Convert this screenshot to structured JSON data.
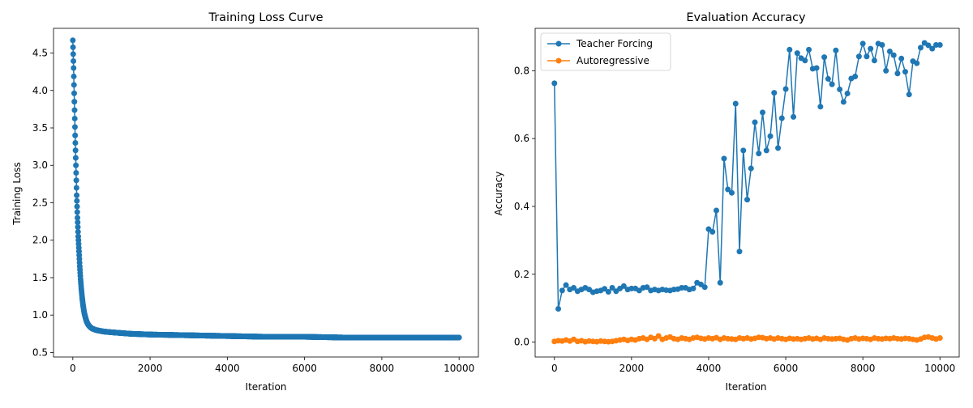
{
  "chart_data": [
    {
      "type": "line",
      "title": "Training Loss Curve",
      "xlabel": "Iteration",
      "ylabel": "Training Loss",
      "xlim": [
        -500,
        10500
      ],
      "ylim": [
        0.44,
        4.83
      ],
      "xticks": [
        0,
        2000,
        4000,
        6000,
        8000,
        10000
      ],
      "xtick_labels": [
        "0",
        "2000",
        "4000",
        "6000",
        "8000",
        "10000"
      ],
      "yticks": [
        0.5,
        1.0,
        1.5,
        2.0,
        2.5,
        3.0,
        3.5,
        4.0,
        4.5
      ],
      "ytick_labels": [
        "0.5",
        "1.0",
        "1.5",
        "2.0",
        "2.5",
        "3.0",
        "3.5",
        "4.0",
        "4.5"
      ],
      "grid": false,
      "series": [
        {
          "color": "#1f77b4",
          "marker": "circle",
          "x": [
            0,
            20,
            40,
            60,
            80,
            100,
            120,
            140,
            160,
            180,
            200,
            220,
            240,
            260,
            280,
            300,
            330,
            360,
            400,
            450,
            500,
            600,
            700,
            800,
            1000,
            1500,
            2000,
            3000,
            4000,
            5000,
            6000,
            7000,
            8000,
            9000,
            10000
          ],
          "values": [
            4.67,
            4.3,
            3.85,
            3.4,
            3.0,
            2.6,
            2.3,
            2.05,
            1.85,
            1.65,
            1.48,
            1.35,
            1.24,
            1.15,
            1.08,
            1.02,
            0.96,
            0.91,
            0.87,
            0.84,
            0.82,
            0.8,
            0.79,
            0.78,
            0.77,
            0.75,
            0.74,
            0.73,
            0.72,
            0.71,
            0.71,
            0.7,
            0.7,
            0.7,
            0.7
          ]
        }
      ]
    },
    {
      "type": "line",
      "title": "Evaluation Accuracy",
      "xlabel": "Iteration",
      "ylabel": "Accuracy",
      "xlim": [
        -500,
        10500
      ],
      "ylim": [
        -0.044,
        0.925
      ],
      "xticks": [
        0,
        2000,
        4000,
        6000,
        8000,
        10000
      ],
      "xtick_labels": [
        "0",
        "2000",
        "4000",
        "6000",
        "8000",
        "10000"
      ],
      "yticks": [
        0.0,
        0.2,
        0.4,
        0.6,
        0.8
      ],
      "ytick_labels": [
        "0.0",
        "0.2",
        "0.4",
        "0.6",
        "0.8"
      ],
      "grid": false,
      "legend": "top-left",
      "series": [
        {
          "name": "Teacher Forcing",
          "color": "#1f77b4",
          "marker": "circle",
          "x": [
            0,
            100,
            200,
            300,
            400,
            500,
            600,
            700,
            800,
            900,
            1000,
            1100,
            1200,
            1300,
            1400,
            1500,
            1600,
            1700,
            1800,
            1900,
            2000,
            2100,
            2200,
            2300,
            2400,
            2500,
            2600,
            2700,
            2800,
            2900,
            3000,
            3100,
            3200,
            3300,
            3400,
            3500,
            3600,
            3700,
            3800,
            3900,
            4000,
            4100,
            4200,
            4300,
            4400,
            4500,
            4600,
            4700,
            4800,
            4900,
            5000,
            5100,
            5200,
            5300,
            5400,
            5500,
            5600,
            5700,
            5800,
            5900,
            6000,
            6100,
            6200,
            6300,
            6400,
            6500,
            6600,
            6700,
            6800,
            6900,
            7000,
            7100,
            7200,
            7300,
            7400,
            7500,
            7600,
            7700,
            7800,
            7900,
            8000,
            8100,
            8200,
            8300,
            8400,
            8500,
            8600,
            8700,
            8800,
            8900,
            9000,
            9100,
            9200,
            9300,
            9400,
            9500,
            9600,
            9700,
            9800,
            9900,
            10000
          ],
          "values": [
            0.763,
            0.098,
            0.152,
            0.168,
            0.155,
            0.16,
            0.15,
            0.155,
            0.16,
            0.155,
            0.147,
            0.15,
            0.152,
            0.157,
            0.148,
            0.16,
            0.15,
            0.158,
            0.165,
            0.155,
            0.158,
            0.158,
            0.152,
            0.16,
            0.162,
            0.152,
            0.155,
            0.152,
            0.155,
            0.153,
            0.152,
            0.155,
            0.156,
            0.16,
            0.16,
            0.155,
            0.158,
            0.175,
            0.17,
            0.162,
            0.333,
            0.325,
            0.388,
            0.175,
            0.541,
            0.45,
            0.44,
            0.703,
            0.267,
            0.565,
            0.42,
            0.512,
            0.648,
            0.556,
            0.677,
            0.565,
            0.607,
            0.735,
            0.572,
            0.66,
            0.746,
            0.862,
            0.664,
            0.852,
            0.837,
            0.83,
            0.862,
            0.806,
            0.808,
            0.694,
            0.84,
            0.776,
            0.76,
            0.86,
            0.745,
            0.708,
            0.733,
            0.777,
            0.783,
            0.842,
            0.88,
            0.842,
            0.865,
            0.83,
            0.88,
            0.876,
            0.8,
            0.857,
            0.846,
            0.792,
            0.836,
            0.797,
            0.73,
            0.828,
            0.822,
            0.868,
            0.882,
            0.875,
            0.865,
            0.876,
            0.876
          ]
        },
        {
          "name": "Autoregressive",
          "color": "#ff7f0e",
          "marker": "circle",
          "x": [
            0,
            100,
            200,
            300,
            400,
            500,
            600,
            700,
            800,
            900,
            1000,
            1100,
            1200,
            1300,
            1400,
            1500,
            1600,
            1700,
            1800,
            1900,
            2000,
            2100,
            2200,
            2300,
            2400,
            2500,
            2600,
            2700,
            2800,
            2900,
            3000,
            3100,
            3200,
            3300,
            3400,
            3500,
            3600,
            3700,
            3800,
            3900,
            4000,
            4100,
            4200,
            4300,
            4400,
            4500,
            4600,
            4700,
            4800,
            4900,
            5000,
            5100,
            5200,
            5300,
            5400,
            5500,
            5600,
            5700,
            5800,
            5900,
            6000,
            6100,
            6200,
            6300,
            6400,
            6500,
            6600,
            6700,
            6800,
            6900,
            7000,
            7100,
            7200,
            7300,
            7400,
            7500,
            7600,
            7700,
            7800,
            7900,
            8000,
            8100,
            8200,
            8300,
            8400,
            8500,
            8600,
            8700,
            8800,
            8900,
            9000,
            9100,
            9200,
            9300,
            9400,
            9500,
            9600,
            9700,
            9800,
            9900,
            10000
          ],
          "values": [
            0.002,
            0.004,
            0.003,
            0.006,
            0.003,
            0.008,
            0.002,
            0.004,
            0.001,
            0.003,
            0.002,
            0.001,
            0.003,
            0.002,
            0.001,
            0.002,
            0.004,
            0.006,
            0.008,
            0.005,
            0.008,
            0.006,
            0.01,
            0.012,
            0.008,
            0.014,
            0.01,
            0.018,
            0.008,
            0.012,
            0.015,
            0.01,
            0.008,
            0.012,
            0.01,
            0.008,
            0.012,
            0.014,
            0.011,
            0.009,
            0.012,
            0.01,
            0.013,
            0.008,
            0.012,
            0.01,
            0.009,
            0.008,
            0.012,
            0.01,
            0.012,
            0.009,
            0.011,
            0.014,
            0.013,
            0.01,
            0.012,
            0.009,
            0.012,
            0.01,
            0.008,
            0.011,
            0.009,
            0.01,
            0.008,
            0.01,
            0.012,
            0.009,
            0.011,
            0.008,
            0.012,
            0.01,
            0.009,
            0.01,
            0.011,
            0.008,
            0.006,
            0.01,
            0.012,
            0.009,
            0.011,
            0.01,
            0.008,
            0.012,
            0.01,
            0.009,
            0.011,
            0.01,
            0.012,
            0.01,
            0.009,
            0.011,
            0.01,
            0.008,
            0.006,
            0.009,
            0.014,
            0.015,
            0.012,
            0.009,
            0.012
          ]
        }
      ]
    }
  ]
}
